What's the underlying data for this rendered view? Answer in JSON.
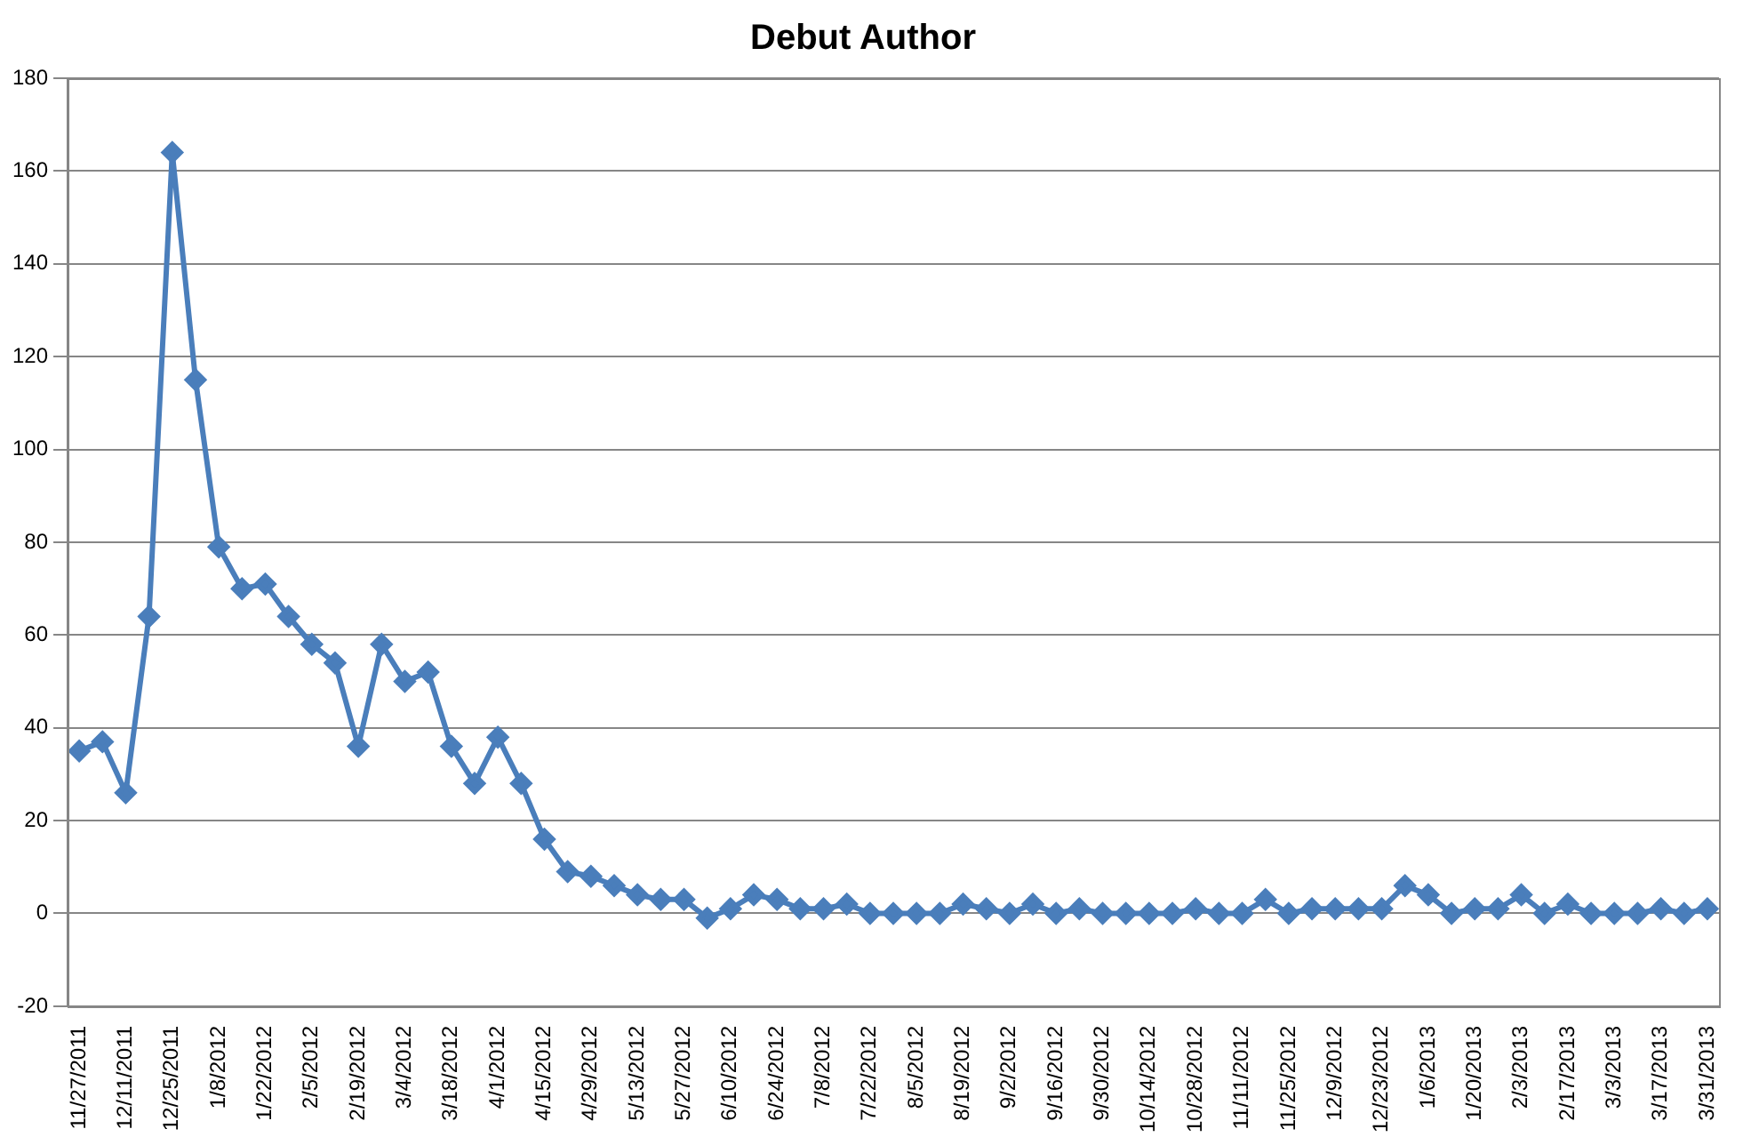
{
  "chart_data": {
    "type": "line",
    "title": "Debut Author",
    "categories": [
      "11/27/2011",
      null,
      "12/11/2011",
      null,
      "12/25/2011",
      null,
      "1/8/2012",
      null,
      "1/22/2012",
      null,
      "2/5/2012",
      null,
      "2/19/2012",
      null,
      "3/4/2012",
      null,
      "3/18/2012",
      null,
      "4/1/2012",
      null,
      "4/15/2012",
      null,
      "4/29/2012",
      null,
      "5/13/2012",
      null,
      "5/27/2012",
      null,
      "6/10/2012",
      null,
      "6/24/2012",
      null,
      "7/8/2012",
      null,
      "7/22/2012",
      null,
      "8/5/2012",
      null,
      "8/19/2012",
      null,
      "9/2/2012",
      null,
      "9/16/2012",
      null,
      "9/30/2012",
      null,
      "10/14/2012",
      null,
      "10/28/2012",
      null,
      "11/11/2012",
      null,
      "11/25/2012",
      null,
      "12/9/2012",
      null,
      "12/23/2012",
      null,
      "1/6/2013",
      null,
      "1/20/2013",
      null,
      "2/3/2013",
      null,
      "2/17/2013",
      null,
      "3/3/2013",
      null,
      "3/17/2013",
      null,
      "3/31/2013"
    ],
    "series": [
      {
        "color": "#4a7ebb",
        "values": [
          35,
          37,
          26,
          64,
          164,
          115,
          79,
          70,
          71,
          64,
          58,
          54,
          36,
          58,
          50,
          52,
          36,
          28,
          38,
          28,
          16,
          9,
          8,
          6,
          4,
          3,
          3,
          -1,
          1,
          4,
          3,
          1,
          1,
          2,
          0,
          0,
          0,
          0,
          2,
          1,
          0,
          2,
          0,
          1,
          0,
          0,
          0,
          0,
          1,
          0,
          0,
          3,
          0,
          1,
          1,
          1,
          1,
          6,
          4,
          0,
          1,
          1,
          4,
          0,
          2,
          0,
          0,
          0,
          1,
          0,
          1
        ]
      }
    ],
    "ylim": [
      -20,
      180
    ],
    "yticks": [
      -20,
      0,
      20,
      40,
      60,
      80,
      100,
      120,
      140,
      160,
      180
    ],
    "grid": "y",
    "legend": false,
    "marker": "diamond",
    "line_style": "solid"
  }
}
